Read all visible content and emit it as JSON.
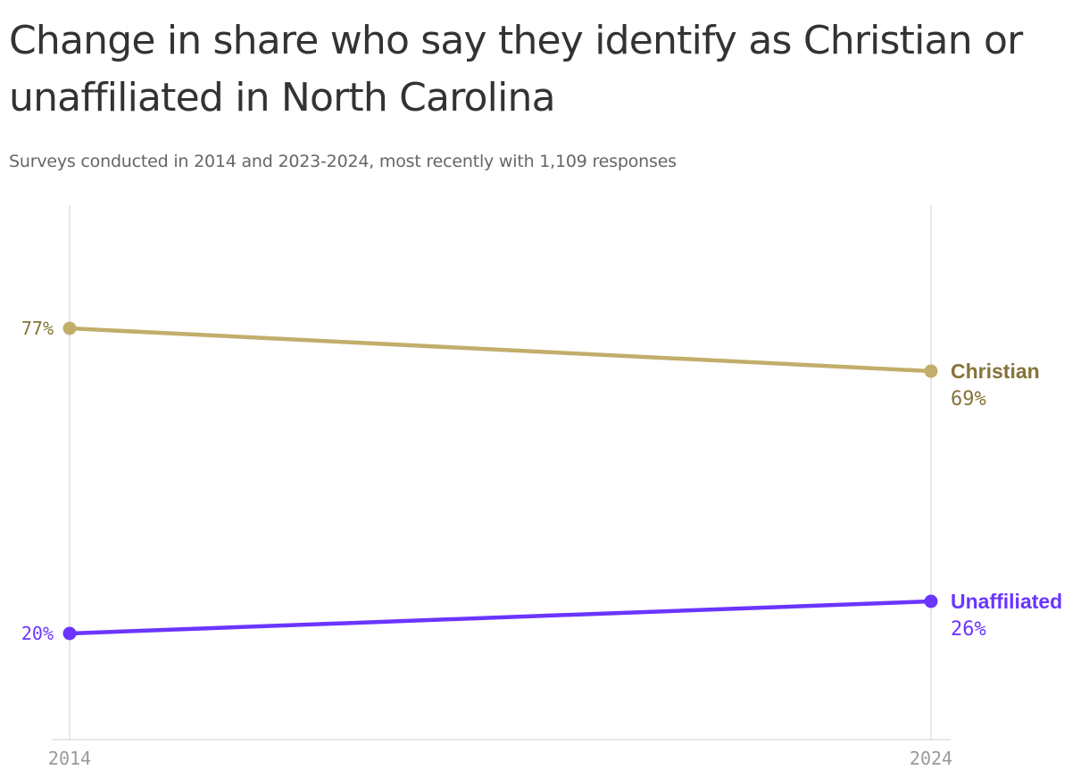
{
  "chart_data": {
    "type": "line",
    "title": "Change in share who say they identify as Christian or unaffiliated in North Carolina",
    "subtitle": "Surveys conducted in 2014 and 2023-2024, most recently with 1,109 responses",
    "x": [
      "2014",
      "2024"
    ],
    "x_tick_labels": [
      "2014",
      "2024"
    ],
    "ylim": [
      0,
      100
    ],
    "grid": "vertical lines at each x tick",
    "legend": "direct labels at right end of lines",
    "series": [
      {
        "name": "Christian",
        "values": [
          77,
          69
        ],
        "start_label": "77%",
        "end_label": "69%",
        "color": "#c2ad6b",
        "label_color": "#857338"
      },
      {
        "name": "Unaffiliated",
        "values": [
          20,
          26
        ],
        "start_label": "20%",
        "end_label": "26%",
        "color": "#6a35ff",
        "label_color": "#6a35ff"
      }
    ]
  },
  "colors": {
    "grid": "#e0e0e0",
    "axis_tick_text": "#999999",
    "title": "#333333",
    "subtitle": "#666666"
  }
}
